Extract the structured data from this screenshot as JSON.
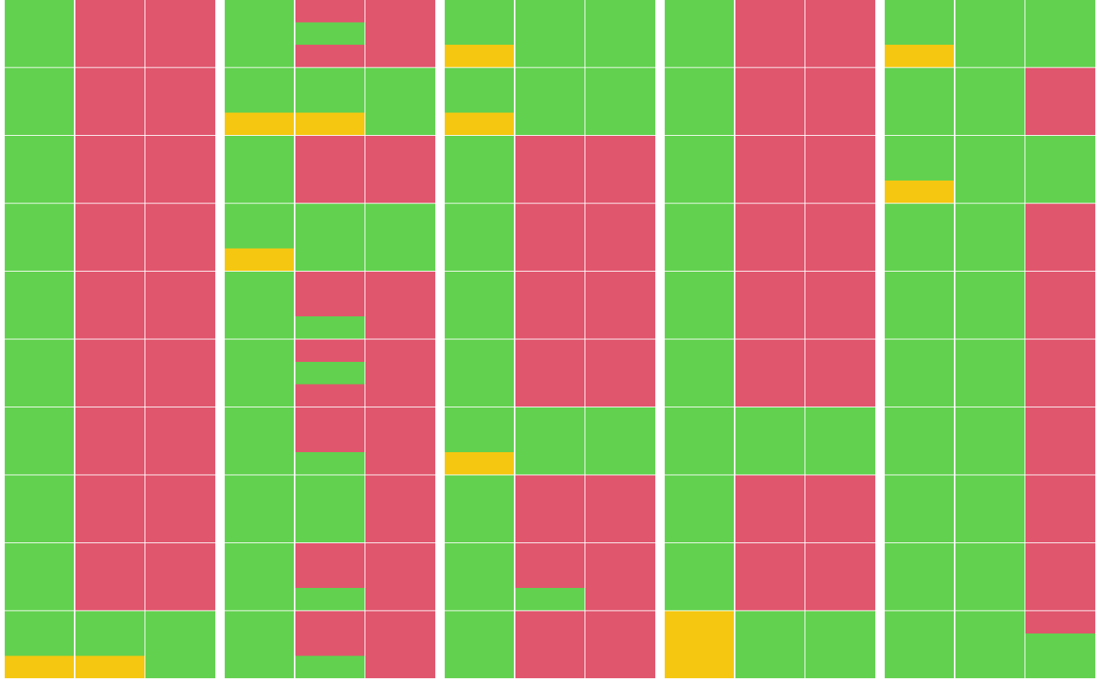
{
  "palette": {
    "g": "#62d14f",
    "r": "#e0566d",
    "y": "#f5c710"
  },
  "groups": [
    {
      "columns": [
        [
          "ggg",
          "ggg",
          "ggg",
          "ggg",
          "ggg",
          "ggg",
          "ggg",
          "ggg",
          "ggg",
          "ggy"
        ],
        [
          "rrr",
          "rrr",
          "rrr",
          "rrr",
          "rrr",
          "rrr",
          "rrr",
          "rrr",
          "rrr",
          "ggy"
        ],
        [
          "rrr",
          "rrr",
          "rrr",
          "rrr",
          "rrr",
          "rrr",
          "rrr",
          "rrr",
          "rrr",
          "ggg"
        ]
      ]
    },
    {
      "columns": [
        [
          "ggg",
          "ggy",
          "ggg",
          "ggy",
          "ggg",
          "ggg",
          "ggg",
          "ggg",
          "ggg",
          "ggg"
        ],
        [
          "rgr",
          "ggy",
          "rrr",
          "ggg",
          "rrg",
          "rgr",
          "rrg",
          "ggg",
          "rrg",
          "rrg"
        ],
        [
          "rrr",
          "ggg",
          "rrr",
          "ggg",
          "rrr",
          "rrr",
          "rrr",
          "rrr",
          "rrr",
          "rrr"
        ]
      ]
    },
    {
      "columns": [
        [
          "ggy",
          "ggy",
          "ggg",
          "ggg",
          "ggg",
          "ggg",
          "ggy",
          "ggg",
          "ggg",
          "ggg"
        ],
        [
          "ggg",
          "ggg",
          "rrr",
          "rrr",
          "rrr",
          "rrr",
          "ggg",
          "rrr",
          "rrg",
          "rrr"
        ],
        [
          "ggg",
          "ggg",
          "rrr",
          "rrr",
          "rrr",
          "rrr",
          "ggg",
          "rrr",
          "rrr",
          "rrr"
        ]
      ]
    },
    {
      "columns": [
        [
          "ggg",
          "ggg",
          "ggg",
          "ggg",
          "ggg",
          "ggg",
          "ggg",
          "ggg",
          "ggg",
          "yyy"
        ],
        [
          "rrr",
          "rrr",
          "rrr",
          "rrr",
          "rrr",
          "rrr",
          "ggg",
          "rrr",
          "rrr",
          "ggg"
        ],
        [
          "rrr",
          "rrr",
          "rrr",
          "rrr",
          "rrr",
          "rrr",
          "ggg",
          "rrr",
          "rrr",
          "ggg"
        ]
      ]
    },
    {
      "columns": [
        [
          "ggy",
          "ggg",
          "ggy",
          "ggg",
          "ggg",
          "ggg",
          "ggg",
          "ggg",
          "ggg",
          "ggg"
        ],
        [
          "ggg",
          "ggg",
          "ggg",
          "ggg",
          "ggg",
          "ggg",
          "ggg",
          "ggg",
          "ggg",
          "ggg"
        ],
        [
          "ggg",
          "rrr",
          "ggg",
          "rrr",
          "rrr",
          "rrr",
          "rrr",
          "rrr",
          "rrr",
          "rgg"
        ]
      ]
    }
  ]
}
